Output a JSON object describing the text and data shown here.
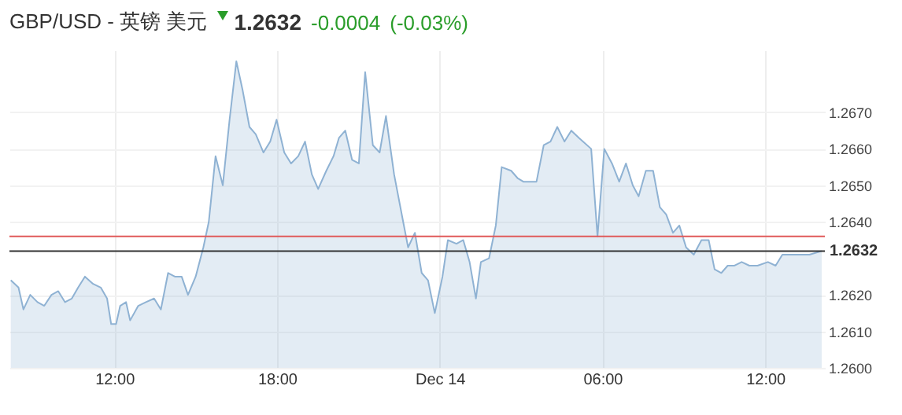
{
  "chart_data": {
    "type": "area",
    "title": "GBP/USD - 英镑 美元",
    "annotations": [
      "1.2632",
      "-0.0004",
      "(-0.03%)"
    ],
    "x": [
      "--12-13T08:11",
      "--12-13T08:28",
      "--12-13T08:39",
      "--12-13T08:54",
      "--12-13T09:10",
      "--12-13T09:25",
      "--12-13T09:41",
      "--12-13T09:56",
      "--12-13T10:11",
      "--12-13T10:26",
      "--12-13T10:40",
      "--12-13T10:55",
      "--12-13T11:13",
      "--12-13T11:30",
      "--12-13T11:44",
      "--12-13T11:53",
      "--12-13T12:04",
      "--12-13T12:13",
      "--12-13T12:26",
      "--12-13T12:35",
      "--12-13T12:53",
      "--12-13T13:10",
      "--12-13T13:28",
      "--12-13T13:43",
      "--12-13T13:59",
      "--12-13T14:14",
      "--12-13T14:29",
      "--12-13T14:43",
      "--12-13T15:00",
      "--12-13T15:17",
      "--12-13T15:29",
      "--12-13T15:44",
      "--12-13T16:00",
      "--12-13T16:15",
      "--12-13T16:30",
      "--12-13T16:44",
      "--12-13T16:59",
      "--12-13T17:13",
      "--12-13T17:30",
      "--12-13T17:45",
      "--12-13T17:59",
      "--12-13T18:16",
      "--12-13T18:31",
      "--12-13T18:47",
      "--12-13T19:02",
      "--12-13T19:17",
      "--12-13T19:31",
      "--12-13T19:49",
      "--12-13T20:05",
      "--12-13T20:17",
      "--12-13T20:31",
      "--12-13T20:46",
      "--12-13T21:01",
      "--12-13T21:15",
      "--12-13T21:32",
      "--12-13T21:47",
      "--12-13T22:01",
      "--12-13T22:19",
      "--12-13T22:36",
      "--12-13T22:50",
      "--12-13T23:05",
      "--12-13T23:20",
      "--12-13T23:34",
      "--12-13T23:49",
      "--12-14T00:06",
      "--12-14T00:18",
      "--12-14T00:37",
      "--12-14T00:52",
      "--12-14T01:06",
      "--12-14T01:20",
      "--12-14T01:31",
      "--12-14T01:49",
      "--12-14T02:04",
      "--12-14T02:17",
      "--12-14T02:38",
      "--12-14T02:52",
      "--12-14T03:05",
      "--12-14T03:34",
      "--12-14T03:50",
      "--12-14T04:05",
      "--12-14T04:20",
      "--12-14T04:36",
      "--12-14T04:51",
      "--12-14T05:08",
      "--12-14T05:35",
      "--12-14T05:49",
      "--12-14T06:04",
      "--12-14T06:21",
      "--12-14T06:37",
      "--12-14T06:52",
      "--12-14T07:07",
      "--12-14T07:20",
      "--12-14T07:36",
      "--12-14T07:52",
      "--12-14T08:07",
      "--12-14T08:21",
      "--12-14T08:36",
      "--12-14T08:50",
      "--12-14T09:05",
      "--12-14T09:22",
      "--12-14T09:39",
      "--12-14T09:55",
      "--12-14T10:08",
      "--12-14T10:23",
      "--12-14T10:37",
      "--12-14T10:52",
      "--12-14T11:08",
      "--12-14T11:25",
      "--12-14T11:43",
      "--12-14T12:06",
      "--12-14T12:23",
      "--12-14T12:38",
      "--12-14T12:52",
      "--12-14T13:13",
      "--12-14T13:38",
      "--12-14T14:05"
    ],
    "series": [
      {
        "color": "#8fb2d3",
        "values": [
          1.2624,
          1.2622,
          1.2616,
          1.262,
          1.2618,
          1.2617,
          1.262,
          1.2621,
          1.2618,
          1.2619,
          1.2622,
          1.2625,
          1.2623,
          1.2622,
          1.2619,
          1.2612,
          1.2612,
          1.2617,
          1.2618,
          1.2613,
          1.2617,
          1.2618,
          1.2619,
          1.2616,
          1.2626,
          1.2625,
          1.2625,
          1.262,
          1.2625,
          1.2633,
          1.264,
          1.2658,
          1.265,
          1.2668,
          1.2684,
          1.2676,
          1.2666,
          1.2664,
          1.2659,
          1.2662,
          1.2668,
          1.2659,
          1.2656,
          1.2658,
          1.2662,
          1.2653,
          1.2649,
          1.2654,
          1.2658,
          1.2663,
          1.2665,
          1.2657,
          1.2656,
          1.2681,
          1.2661,
          1.2659,
          1.2669,
          1.2653,
          1.2642,
          1.2633,
          1.2637,
          1.2626,
          1.2624,
          1.2615,
          1.2625,
          1.2635,
          1.2634,
          1.2635,
          1.2629,
          1.2619,
          1.2629,
          1.263,
          1.2639,
          1.2655,
          1.2654,
          1.2652,
          1.2651,
          1.2651,
          1.2661,
          1.2662,
          1.2666,
          1.2662,
          1.2665,
          1.2663,
          1.266,
          1.2636,
          1.266,
          1.2656,
          1.2651,
          1.2656,
          1.265,
          1.2647,
          1.2654,
          1.2654,
          1.2644,
          1.2642,
          1.2637,
          1.2639,
          1.2633,
          1.2631,
          1.2635,
          1.2635,
          1.2627,
          1.2626,
          1.2628,
          1.2628,
          1.2629,
          1.2628,
          1.2628,
          1.2629,
          1.2628,
          1.2631,
          1.2631,
          1.2631,
          1.2631,
          1.2632
        ]
      }
    ],
    "xlim": [
      "--12-13T08:08",
      "--12-14T14:12"
    ],
    "xticks": [
      {
        "value": "--12-13T12:00",
        "label": "12:00"
      },
      {
        "value": "--12-13T18:00",
        "label": "18:00"
      },
      {
        "value": "--12-14T00:00",
        "label": "Dec 14"
      },
      {
        "value": "--12-14T06:00",
        "label": "06:00"
      },
      {
        "value": "--12-14T12:00",
        "label": "12:00"
      }
    ],
    "ylim": [
      1.26,
      1.2687
    ],
    "yticks": [
      {
        "value": 1.26,
        "label": "1.2600"
      },
      {
        "value": 1.261,
        "label": "1.2610"
      },
      {
        "value": 1.262,
        "label": "1.2620"
      },
      {
        "value": 1.264,
        "label": "1.2640"
      },
      {
        "value": 1.265,
        "label": "1.2650"
      },
      {
        "value": 1.266,
        "label": "1.2660"
      },
      {
        "value": 1.267,
        "label": "1.2670"
      }
    ],
    "ref_lines": [
      {
        "axis": "y",
        "value": 1.2636,
        "color": "#e05a5a"
      },
      {
        "axis": "y",
        "value": 1.2632,
        "label": "1.2632",
        "color": "#333333"
      }
    ],
    "grid": true,
    "marker": "none",
    "line_style": "solid"
  }
}
